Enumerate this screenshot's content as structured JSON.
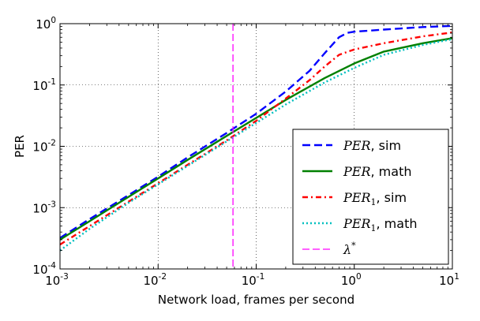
{
  "chart_data": {
    "type": "line",
    "xscale": "log",
    "yscale": "log",
    "xlim": [
      0.001,
      10
    ],
    "ylim": [
      0.0001,
      1
    ],
    "grid": true,
    "xlabel": "Network load, frames per second",
    "ylabel": "PER",
    "x_ticks": [
      {
        "value": 0.001,
        "base": "10",
        "exp": "-3"
      },
      {
        "value": 0.01,
        "base": "10",
        "exp": "-2"
      },
      {
        "value": 0.1,
        "base": "10",
        "exp": "-1"
      },
      {
        "value": 1,
        "base": "10",
        "exp": "0"
      },
      {
        "value": 10,
        "base": "10",
        "exp": "1"
      }
    ],
    "y_ticks": [
      {
        "value": 0.0001,
        "base": "10",
        "exp": "-4"
      },
      {
        "value": 0.001,
        "base": "10",
        "exp": "-3"
      },
      {
        "value": 0.01,
        "base": "10",
        "exp": "-2"
      },
      {
        "value": 0.1,
        "base": "10",
        "exp": "-1"
      },
      {
        "value": 1,
        "base": "10",
        "exp": "0"
      }
    ],
    "legend_position": "lower-right",
    "series": [
      {
        "name": "PER, sim",
        "legend_math": "PER",
        "legend_sub": "",
        "legend_suffix": ", sim",
        "color": "#0000ff",
        "style": "dashed",
        "x": [
          0.001,
          0.002,
          0.005,
          0.01,
          0.02,
          0.05,
          0.1,
          0.2,
          0.35,
          0.5,
          0.7,
          0.85,
          1.0,
          2,
          5,
          10
        ],
        "y": [
          0.00032,
          0.00065,
          0.0016,
          0.0032,
          0.0066,
          0.0165,
          0.034,
          0.078,
          0.17,
          0.33,
          0.6,
          0.71,
          0.74,
          0.8,
          0.88,
          0.92
        ]
      },
      {
        "name": "PER, math",
        "legend_math": "PER",
        "legend_sub": "",
        "legend_suffix": ", math",
        "color": "#008000",
        "style": "solid",
        "x": [
          0.001,
          0.002,
          0.005,
          0.01,
          0.02,
          0.05,
          0.1,
          0.2,
          0.5,
          1,
          2,
          5,
          10
        ],
        "y": [
          0.0003,
          0.0006,
          0.0015,
          0.003,
          0.006,
          0.0148,
          0.029,
          0.057,
          0.13,
          0.225,
          0.35,
          0.48,
          0.58
        ]
      },
      {
        "name": "PER1, sim",
        "legend_math": "PER",
        "legend_sub": "1",
        "legend_suffix": ", sim",
        "color": "#ff0000",
        "style": "dashdot",
        "x": [
          0.001,
          0.002,
          0.005,
          0.01,
          0.02,
          0.05,
          0.1,
          0.2,
          0.35,
          0.5,
          0.7,
          1.0,
          2,
          5,
          10
        ],
        "y": [
          0.00025,
          0.0005,
          0.00125,
          0.0025,
          0.005,
          0.0125,
          0.026,
          0.06,
          0.12,
          0.2,
          0.31,
          0.38,
          0.48,
          0.62,
          0.72
        ]
      },
      {
        "name": "PER1, math",
        "legend_math": "PER",
        "legend_sub": "1",
        "legend_suffix": ", math",
        "color": "#00bfbf",
        "style": "dotted",
        "x": [
          0.001,
          0.002,
          0.005,
          0.01,
          0.02,
          0.05,
          0.1,
          0.2,
          0.5,
          1,
          2,
          5,
          10
        ],
        "y": [
          0.0002,
          0.00045,
          0.0012,
          0.0024,
          0.0048,
          0.012,
          0.024,
          0.048,
          0.11,
          0.19,
          0.31,
          0.45,
          0.56
        ]
      },
      {
        "name": "λ*",
        "legend_math": "λ",
        "legend_sub": "",
        "legend_sup": "*",
        "legend_suffix": "",
        "color": "#ff00ff",
        "style": "vline",
        "x_value": 0.058
      }
    ]
  }
}
